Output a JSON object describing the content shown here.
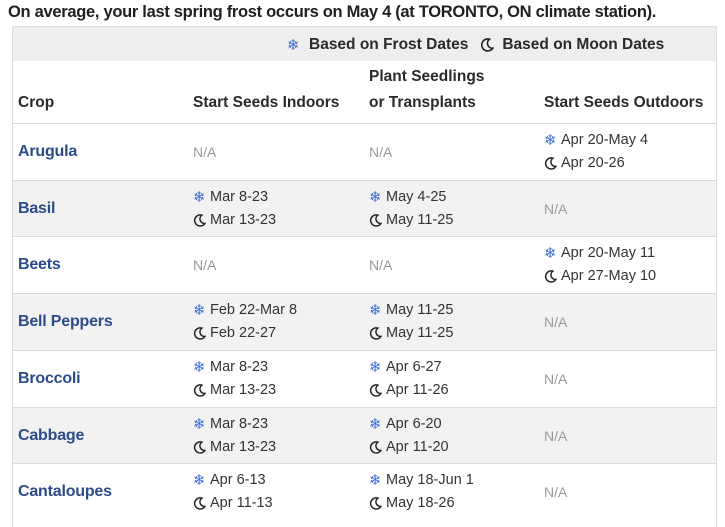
{
  "intro": "On average, your last spring frost occurs on May 4 (at TORONTO, ON climate station).",
  "legend": {
    "frost": "Based on Frost Dates",
    "moon": "Based on Moon Dates"
  },
  "headers": {
    "crop": "Crop",
    "indoors": "Start Seeds Indoors",
    "transplant_1": "Plant Seedlings",
    "transplant_2": "or Transplants",
    "outdoors": "Start Seeds Outdoors"
  },
  "icons": {
    "frost": "snowflake-icon",
    "moon": "moon-icon"
  },
  "colors": {
    "crop_link": "#2b4c8a",
    "snowflake": "#3b6fd6",
    "header_bg": "#eeeeee"
  },
  "rows": [
    {
      "crop": "Arugula",
      "indoors": {
        "na": "N/A"
      },
      "transplant": {
        "na": "N/A"
      },
      "outdoors": {
        "frost": "Apr 20-May 4",
        "moon": "Apr 20-26"
      }
    },
    {
      "crop": "Basil",
      "indoors": {
        "frost": "Mar 8-23",
        "moon": "Mar 13-23"
      },
      "transplant": {
        "frost": "May 4-25",
        "moon": "May 11-25"
      },
      "outdoors": {
        "na": "N/A"
      }
    },
    {
      "crop": "Beets",
      "indoors": {
        "na": "N/A"
      },
      "transplant": {
        "na": "N/A"
      },
      "outdoors": {
        "frost": "Apr 20-May 11",
        "moon": "Apr 27-May 10"
      }
    },
    {
      "crop": "Bell Peppers",
      "indoors": {
        "frost": "Feb 22-Mar 8",
        "moon": "Feb 22-27"
      },
      "transplant": {
        "frost": "May 11-25",
        "moon": "May 11-25"
      },
      "outdoors": {
        "na": "N/A"
      }
    },
    {
      "crop": "Broccoli",
      "indoors": {
        "frost": "Mar 8-23",
        "moon": "Mar 13-23"
      },
      "transplant": {
        "frost": "Apr 6-27",
        "moon": "Apr 11-26"
      },
      "outdoors": {
        "na": "N/A"
      }
    },
    {
      "crop": "Cabbage",
      "indoors": {
        "frost": "Mar 8-23",
        "moon": "Mar 13-23"
      },
      "transplant": {
        "frost": "Apr 6-20",
        "moon": "Apr 11-20"
      },
      "outdoors": {
        "na": "N/A"
      }
    },
    {
      "crop": "Cantaloupes",
      "indoors": {
        "frost": "Apr 6-13",
        "moon": "Apr 11-13"
      },
      "transplant": {
        "frost": "May 18-Jun 1",
        "moon": "May 18-26"
      },
      "outdoors": {
        "na": "N/A"
      }
    }
  ]
}
